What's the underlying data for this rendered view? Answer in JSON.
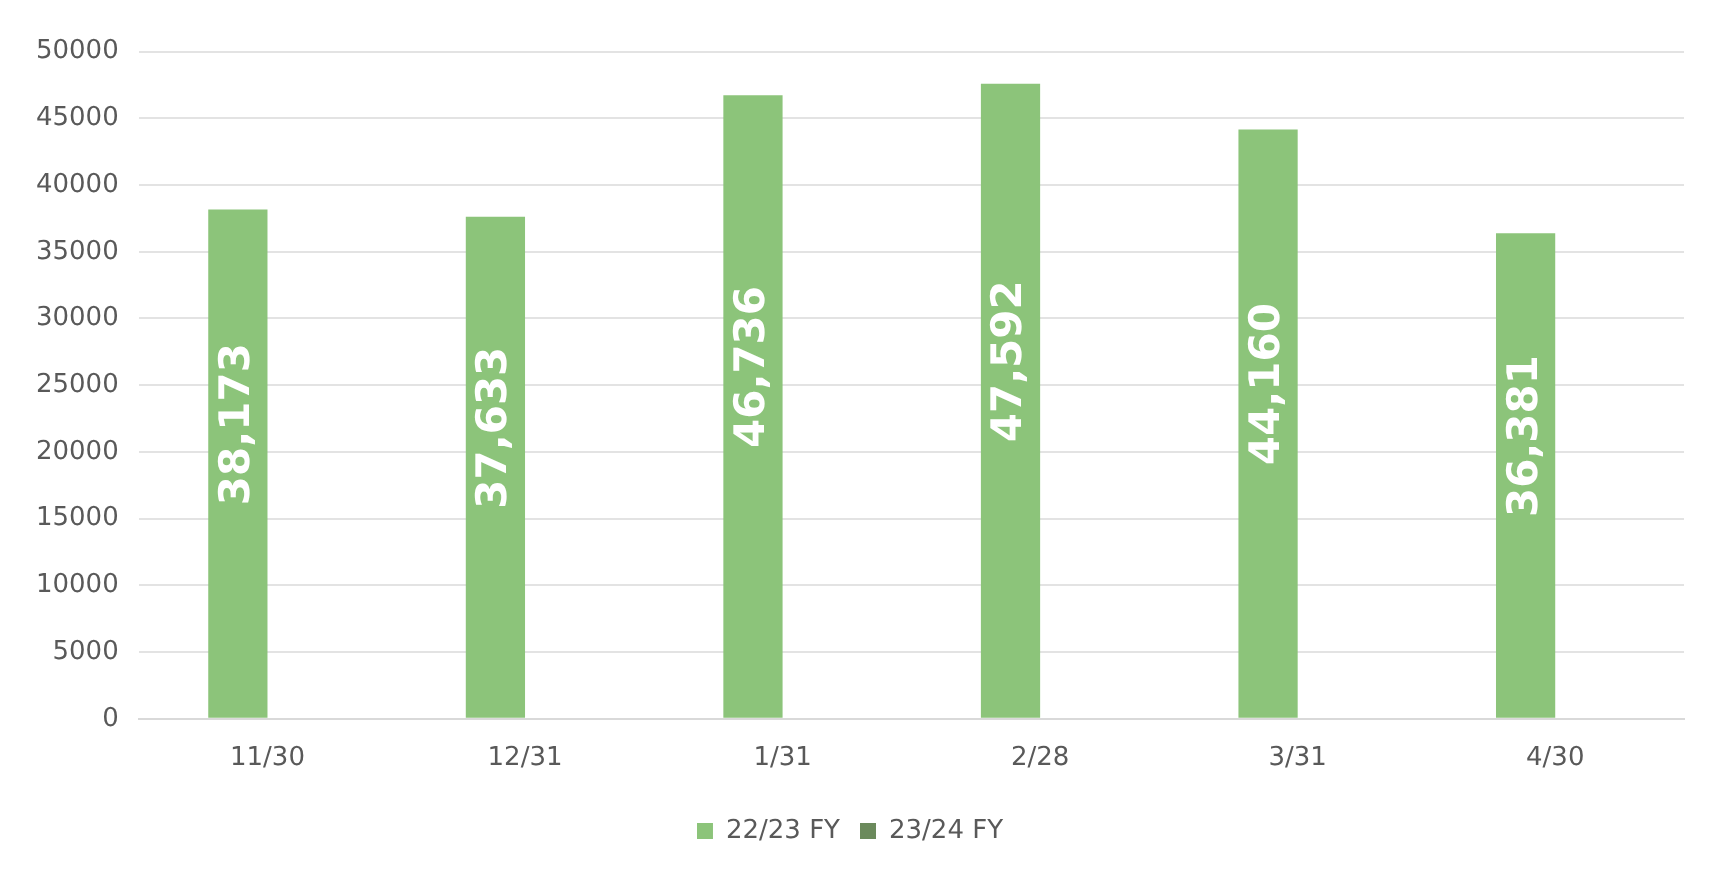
{
  "chart_data": {
    "type": "bar",
    "categories": [
      "11/30",
      "12/31",
      "1/31",
      "2/28",
      "3/31",
      "4/30"
    ],
    "series": [
      {
        "name": "22/23 FY",
        "color": "#8cc47a",
        "values": [
          38173,
          37633,
          46736,
          47592,
          44160,
          36381
        ],
        "value_labels": [
          "38,173",
          "37,633",
          "46,736",
          "47,592",
          "44,160",
          "36,381"
        ]
      },
      {
        "name": "23/24 FY",
        "color": "#6b8a5c",
        "values": [
          null,
          null,
          null,
          null,
          null,
          null
        ]
      }
    ],
    "ylim": [
      0,
      50000
    ],
    "yticks": [
      0,
      5000,
      10000,
      15000,
      20000,
      25000,
      30000,
      35000,
      40000,
      45000,
      50000
    ],
    "grid": "y",
    "legend": "bottom"
  }
}
